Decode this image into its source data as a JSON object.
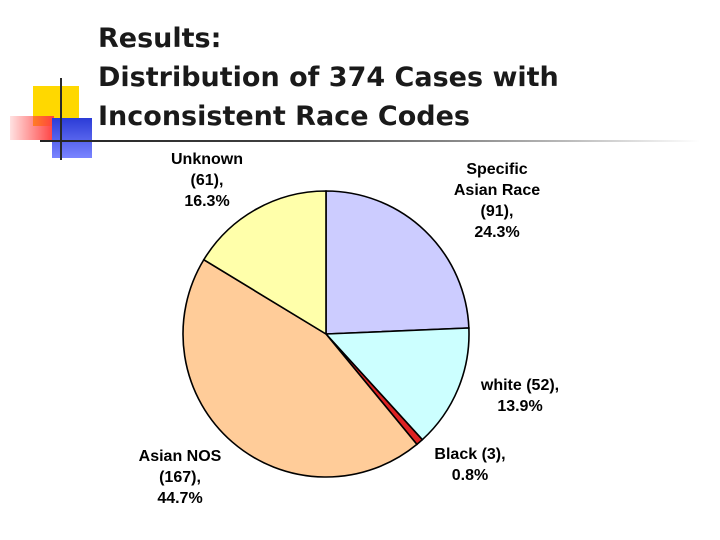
{
  "title": {
    "line1": "Results:",
    "line2": "Distribution of 374 Cases with",
    "line3": "Inconsistent Race Codes"
  },
  "chart_data": {
    "type": "pie",
    "start_angle_deg": 0,
    "direction": "clockwise",
    "slices": [
      {
        "name": "Specific Asian Race",
        "value": 91,
        "percent": "24.3%",
        "color": "#ccccff",
        "label_lines": [
          "Specific",
          "Asian Race",
          "(91),",
          "24.3%"
        ]
      },
      {
        "name": "white",
        "value": 52,
        "percent": "13.9%",
        "color": "#ccffff",
        "label_lines": [
          "white (52),",
          "13.9%"
        ]
      },
      {
        "name": "Black",
        "value": 3,
        "percent": "0.8%",
        "color": "#dd2222",
        "label_lines": [
          "Black (3),",
          "0.8%"
        ]
      },
      {
        "name": "Asian NOS",
        "value": 167,
        "percent": "44.7%",
        "color": "#ffcc99",
        "label_lines": [
          "Asian NOS",
          "(167),",
          "44.7%"
        ]
      },
      {
        "name": "Unknown",
        "value": 61,
        "percent": "16.3%",
        "color": "#ffffaa",
        "label_lines": [
          "Unknown",
          "(61),",
          "16.3%"
        ]
      }
    ]
  }
}
